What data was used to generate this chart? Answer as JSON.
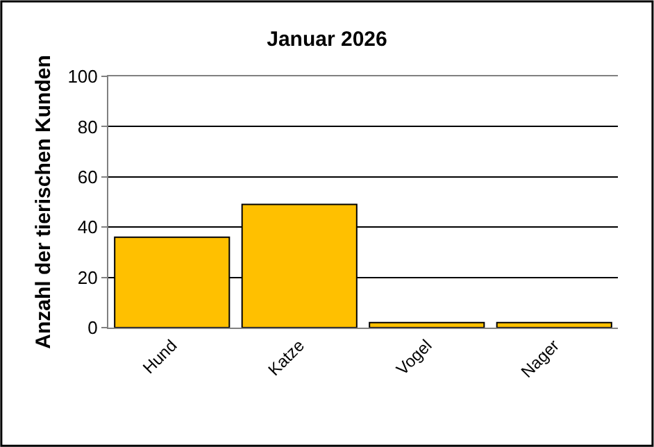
{
  "chart_data": {
    "type": "bar",
    "title": "Januar 2026",
    "ylabel": "Anzahl der tierischen Kunden",
    "categories": [
      "Hund",
      "Katze",
      "Vogel",
      "Nager"
    ],
    "values": [
      36,
      49,
      2,
      2
    ],
    "color": "#ffc000",
    "ylim": [
      0,
      100
    ],
    "yticks": [
      0,
      20,
      40,
      60,
      80,
      100
    ],
    "grid": "y"
  }
}
